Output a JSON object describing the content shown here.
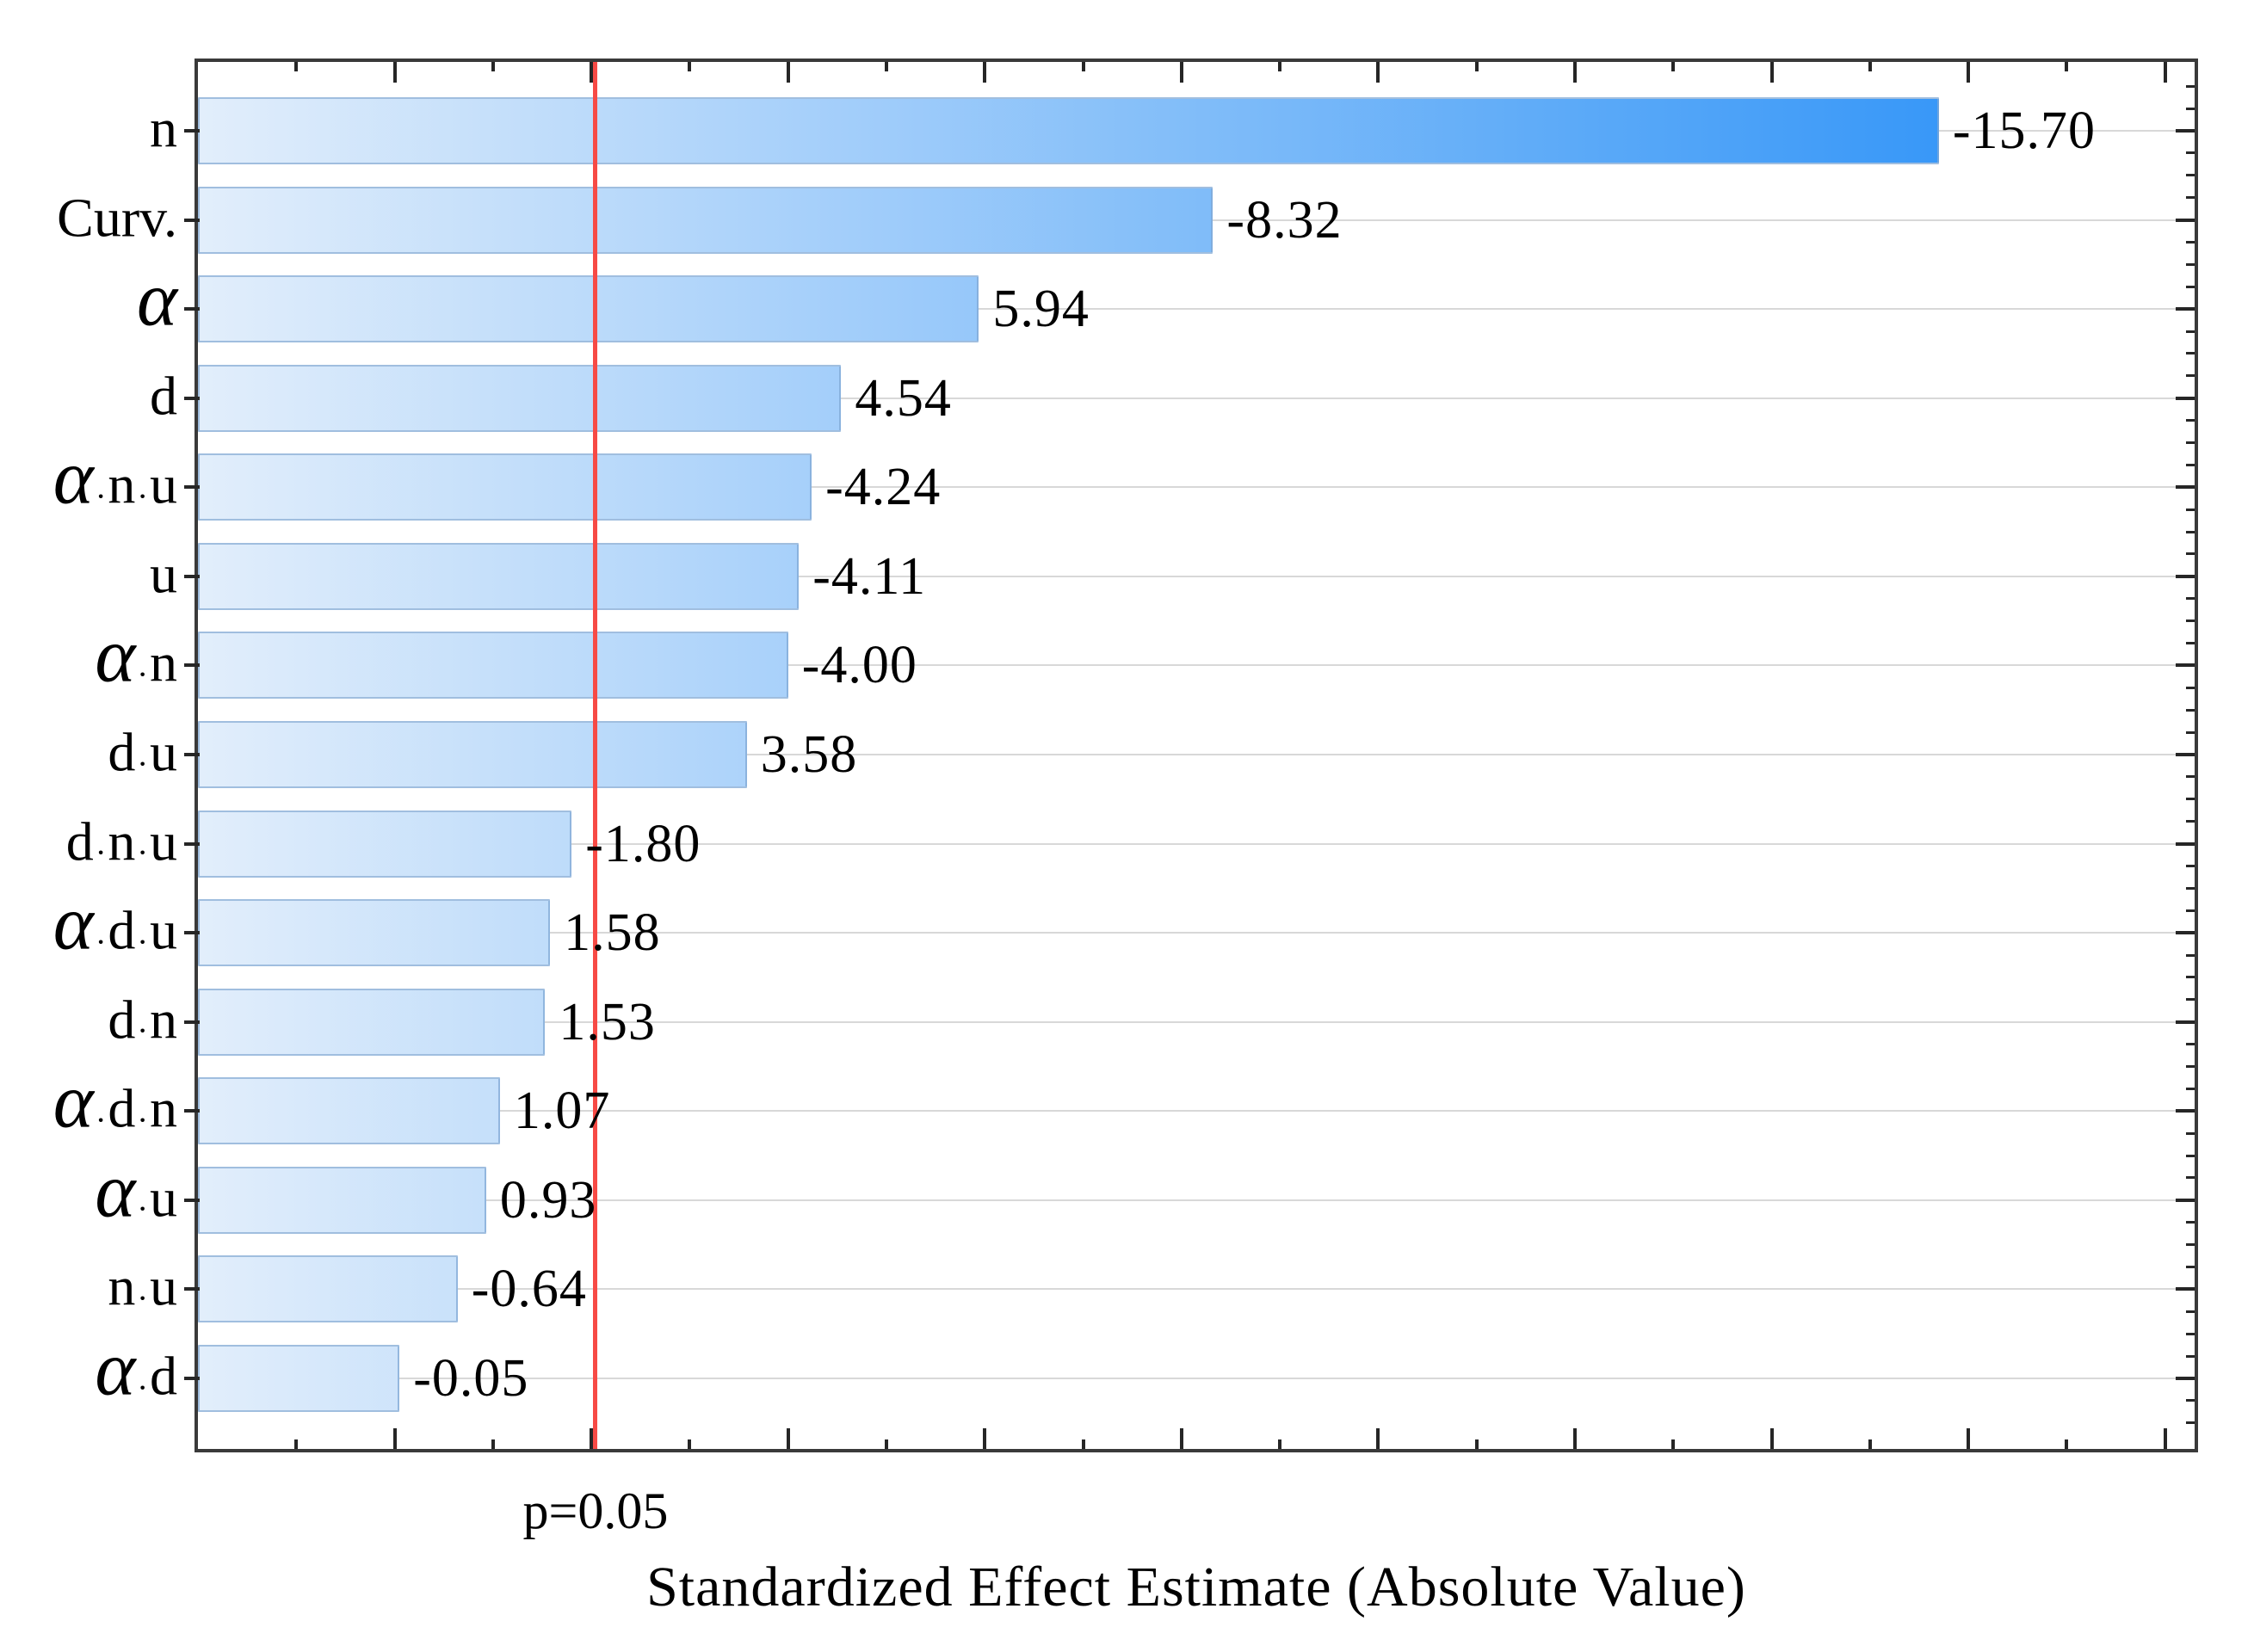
{
  "chart_data": {
    "type": "bar",
    "orientation": "horizontal",
    "title": "",
    "xlabel": "Standardized Effect Estimate (Absolute Value)",
    "ylabel": "",
    "categories": [
      "n",
      "Curv.",
      "α",
      "d",
      "α·n·u",
      "u",
      "α·n",
      "d·u",
      "d·n·u",
      "α·d·u",
      "d·n",
      "α·d·n",
      "α·u",
      "n·u",
      "α·d"
    ],
    "values": [
      -15.7,
      -8.32,
      5.94,
      4.54,
      -4.24,
      -4.11,
      -4.0,
      3.58,
      -1.8,
      1.58,
      1.53,
      1.07,
      0.93,
      -0.64,
      -0.05
    ],
    "value_labels": [
      "-15.70",
      "-8.32",
      "5.94",
      "4.54",
      "-4.24",
      "-4.11",
      "-4.00",
      "3.58",
      "-1.80",
      "1.58",
      "1.53",
      "1.07",
      "0.93",
      "-0.64",
      "-0.05"
    ],
    "bars_show_absolute_value": true,
    "axis": {
      "xmin": -2.0,
      "xmax": 18.3,
      "minor_tick_step": 1,
      "major_tick_step": 2,
      "grid": "horizontal-at-category-centers",
      "legend": "none"
    },
    "reference_line": {
      "value": 2.042,
      "label": "p=0.05",
      "color": "#f74a45"
    },
    "colors": {
      "bar_gradient_start": "#e2eefb",
      "bar_gradient_end": "#1f8bf7",
      "bar_border": "#80a8d4",
      "gridline": "#d8d8d8",
      "frame": "#3a3a3a",
      "tick": "#262626",
      "text": "#000000"
    }
  }
}
